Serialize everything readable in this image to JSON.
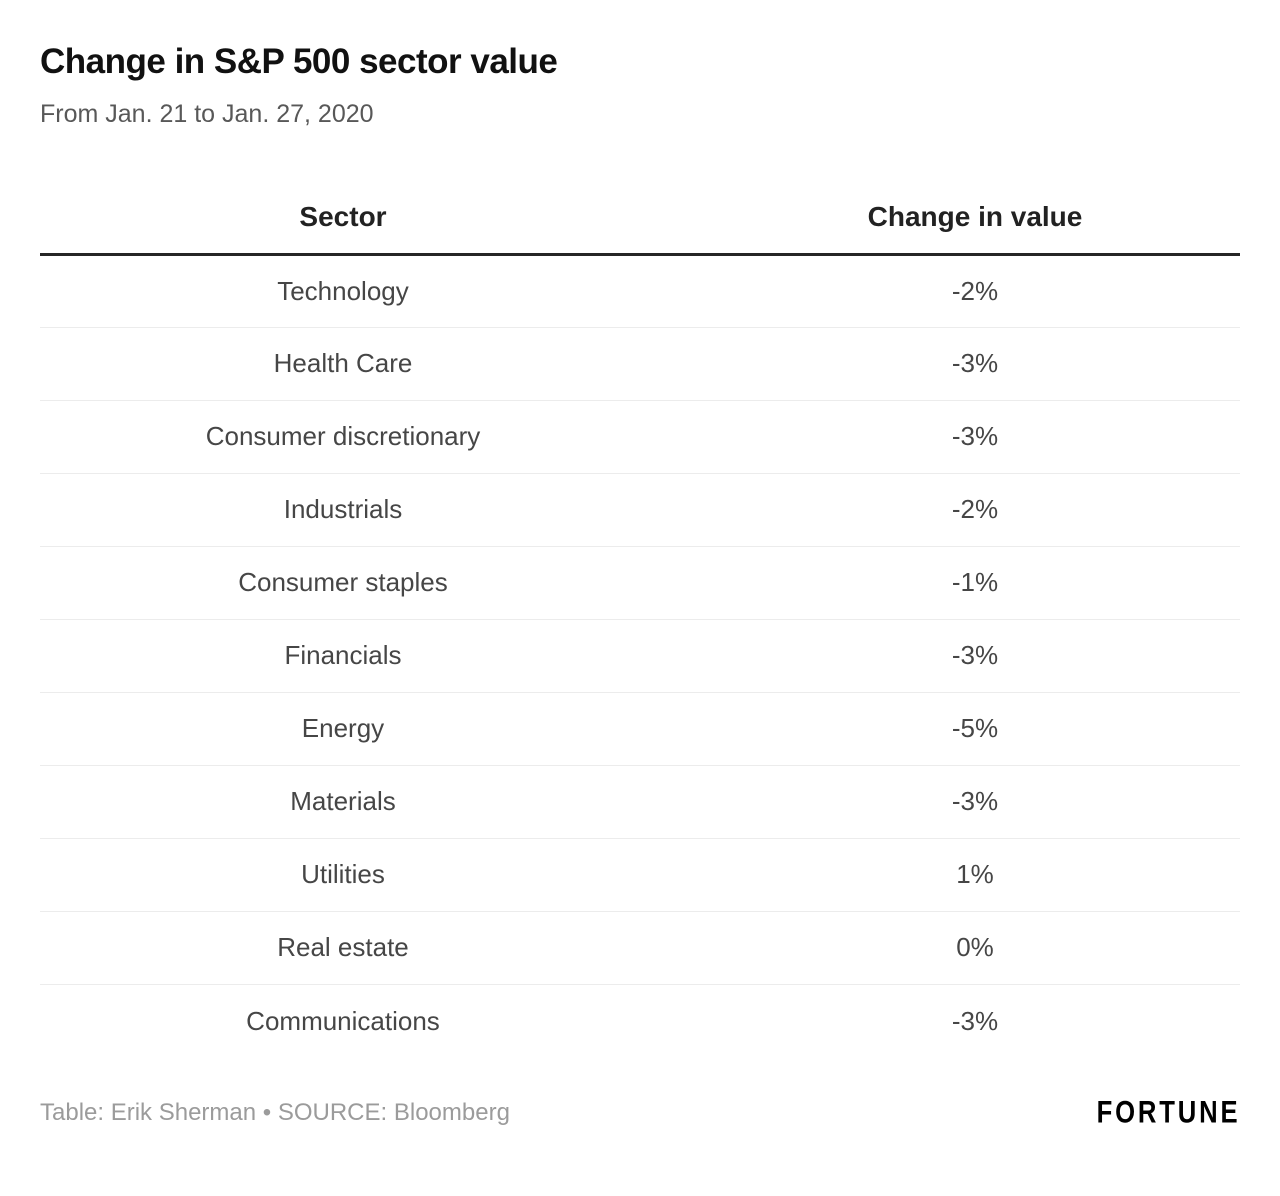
{
  "title": "Change in S&P 500 sector value",
  "subtitle": "From Jan. 21 to Jan. 27, 2020",
  "table": {
    "columns": [
      "Sector",
      "Change in value"
    ],
    "rows": [
      {
        "sector": "Technology",
        "change": "-2%"
      },
      {
        "sector": "Health Care",
        "change": "-3%"
      },
      {
        "sector": "Consumer discretionary",
        "change": "-3%"
      },
      {
        "sector": "Industrials",
        "change": "-2%"
      },
      {
        "sector": "Consumer staples",
        "change": "-1%"
      },
      {
        "sector": "Financials",
        "change": "-3%"
      },
      {
        "sector": "Energy",
        "change": "-5%"
      },
      {
        "sector": "Materials",
        "change": "-3%"
      },
      {
        "sector": "Utilities",
        "change": "1%"
      },
      {
        "sector": "Real estate",
        "change": "0%"
      },
      {
        "sector": "Communications",
        "change": "-3%"
      }
    ]
  },
  "footer": {
    "credit": "Table: Erik Sherman • SOURCE: Bloomberg",
    "brand": "FORTUNE"
  },
  "colors": {
    "bg": "#ffffff",
    "title-color": "#111111",
    "subtitle-color": "#585858",
    "header-color": "#222222",
    "row-color": "#464646",
    "rule-dark": "#262626",
    "rule-light": "#ececec",
    "credit-color": "#9b9b9b",
    "brand-color": "#000000"
  },
  "chart_data": {
    "type": "table",
    "title": "Change in S&P 500 sector value",
    "subtitle": "From Jan. 21 to Jan. 27, 2020",
    "columns": [
      "Sector",
      "Change in value"
    ],
    "categories": [
      "Technology",
      "Health Care",
      "Consumer discretionary",
      "Industrials",
      "Consumer staples",
      "Financials",
      "Energy",
      "Materials",
      "Utilities",
      "Real estate",
      "Communications"
    ],
    "values_pct": [
      -2,
      -3,
      -3,
      -2,
      -1,
      -3,
      -5,
      -3,
      1,
      0,
      -3
    ],
    "credit": "Table: Erik Sherman • SOURCE: Bloomberg",
    "brand": "FORTUNE"
  }
}
